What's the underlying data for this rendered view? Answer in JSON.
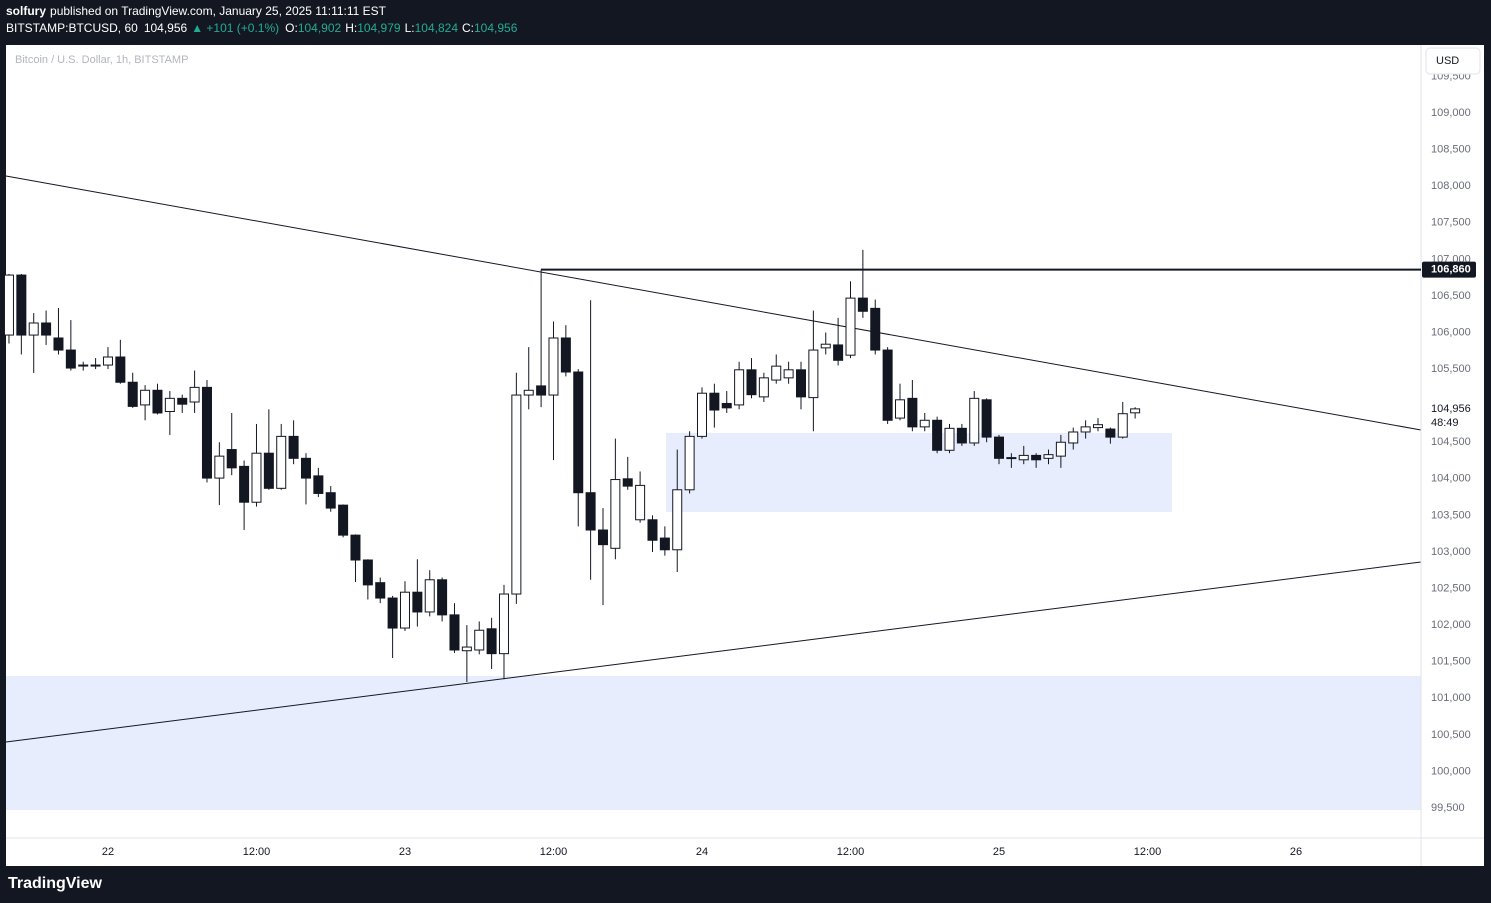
{
  "header": {
    "author": "solfury",
    "published": "published on TradingView.com, January 25, 2025 11:11:11 EST",
    "symbol": "BITSTAMP:BTCUSD, 60",
    "last": "104,956",
    "change": "▲ +101 (+0.1%)",
    "ohlc": [
      {
        "key": "O:",
        "value": "104,902"
      },
      {
        "key": "H:",
        "value": "104,979"
      },
      {
        "key": "L:",
        "value": "104,824"
      },
      {
        "key": "C:",
        "value": "104,956"
      }
    ]
  },
  "chart_data": {
    "type": "candlestick",
    "title": "Bitcoin / U.S. Dollar, 1h, BITSTAMP",
    "currency": "USD",
    "up_color": "#ffffff",
    "down_color": "#131722",
    "x": [
      -8,
      -7,
      -6,
      -5,
      -4,
      -3,
      -2,
      -1,
      0,
      1,
      2,
      3,
      4,
      5,
      6,
      7,
      8,
      9,
      10,
      11,
      12,
      13,
      14,
      15,
      16,
      17,
      18,
      19,
      20,
      21,
      22,
      23,
      24,
      25,
      26,
      27,
      28,
      29,
      30,
      31,
      32,
      33,
      34,
      35,
      36,
      37,
      38,
      39,
      40,
      41,
      42,
      43,
      44,
      45,
      46,
      47,
      48,
      49,
      50,
      51,
      52,
      53,
      54,
      55,
      56,
      57,
      58,
      59,
      60,
      61,
      62,
      63,
      64,
      65,
      66,
      67,
      68,
      69,
      70,
      71,
      72,
      73,
      74,
      75,
      76,
      77,
      78,
      79,
      80,
      81,
      82,
      83
    ],
    "open": [
      105965,
      106785,
      105965,
      106130,
      105925,
      105760,
      105550,
      105555,
      105555,
      105665,
      105320,
      105010,
      105210,
      104920,
      105100,
      105050,
      105250,
      104010,
      104400,
      104170,
      103680,
      104350,
      103870,
      104580,
      104280,
      104040,
      103810,
      103640,
      103230,
      102890,
      102580,
      102370,
      101960,
      102450,
      102180,
      102620,
      102140,
      101650,
      101660,
      101950,
      101610,
      102425,
      105145,
      105270,
      105145,
      105925,
      105460,
      103810,
      103300,
      103050,
      104000,
      103440,
      103440,
      103190,
      103030,
      103850,
      104580,
      105170,
      105030,
      105010,
      105490,
      105120,
      105350,
      105380,
      105490,
      105110,
      105790,
      105830,
      105690,
      106470,
      106330,
      105760,
      104830,
      105100,
      104710,
      104800,
      104390,
      104690,
      104490,
      105080,
      104570,
      104290,
      104260,
      104320,
      104280,
      104310,
      104490,
      104640,
      104700,
      104680,
      104570,
      104902
    ],
    "high": [
      106800,
      106800,
      106266,
      106300,
      106334,
      106170,
      105600,
      105650,
      105800,
      105900,
      105450,
      105280,
      105300,
      105200,
      105150,
      105480,
      105350,
      104500,
      104900,
      104250,
      104750,
      104950,
      104750,
      104800,
      104350,
      104150,
      103900,
      103650,
      103240,
      102900,
      102650,
      102400,
      102600,
      102900,
      102750,
      102650,
      102300,
      102000,
      102050,
      102100,
      102550,
      105450,
      105800,
      106860,
      106150,
      106100,
      105500,
      106440,
      103600,
      104550,
      104300,
      104100,
      103500,
      103350,
      104400,
      104650,
      105250,
      105300,
      105200,
      105600,
      105650,
      105450,
      105700,
      105600,
      105600,
      106300,
      106000,
      106200,
      106700,
      107130,
      106450,
      105800,
      105300,
      105350,
      104900,
      104850,
      104750,
      104750,
      105200,
      105100,
      104600,
      104350,
      104450,
      104350,
      104400,
      104600,
      104700,
      104800,
      104830,
      104700,
      105050,
      104979
    ],
    "low": [
      105850,
      105700,
      105446,
      105830,
      105700,
      105480,
      105480,
      105500,
      105500,
      105300,
      104970,
      104800,
      104880,
      104600,
      104900,
      104900,
      103950,
      103641,
      104050,
      103300,
      103620,
      103850,
      103850,
      104200,
      103650,
      103750,
      103550,
      103200,
      102589,
      102350,
      102300,
      101550,
      101920,
      101980,
      102120,
      102050,
      101620,
      101222,
      101600,
      101400,
      101260,
      102290,
      104950,
      104980,
      104256,
      105400,
      103350,
      102620,
      102274,
      102900,
      103850,
      103400,
      103000,
      102950,
      102726,
      103800,
      104550,
      104700,
      104900,
      104950,
      105100,
      105050,
      105300,
      105300,
      104950,
      104650,
      105700,
      105550,
      105650,
      106200,
      105700,
      104750,
      104800,
      104650,
      104650,
      104350,
      104350,
      104450,
      104450,
      104500,
      104200,
      104150,
      104200,
      104150,
      104200,
      104150,
      104400,
      104550,
      104650,
      104480,
      104550,
      104824
    ],
    "close": [
      106785,
      105965,
      106130,
      105965,
      105760,
      105514,
      105555,
      105550,
      105665,
      105320,
      104990,
      105210,
      104900,
      105100,
      105020,
      105250,
      104010,
      104310,
      104150,
      103680,
      104350,
      103870,
      104580,
      104280,
      104010,
      103800,
      103600,
      103230,
      102890,
      102550,
      102370,
      101960,
      102450,
      102180,
      102620,
      102140,
      101660,
      101700,
      101930,
      101610,
      102425,
      105145,
      105210,
      105145,
      105925,
      105460,
      103810,
      103300,
      103100,
      103990,
      103900,
      103910,
      103160,
      103030,
      103850,
      104580,
      105170,
      104940,
      104970,
      105490,
      105150,
      105380,
      105540,
      105490,
      105120,
      105760,
      105840,
      105620,
      106470,
      106290,
      105760,
      104800,
      105080,
      104710,
      104800,
      104390,
      104690,
      104490,
      105100,
      104570,
      104280,
      104280,
      104320,
      104260,
      104330,
      104500,
      104640,
      104710,
      104740,
      104570,
      104890,
      104956
    ],
    "xlim": [
      -8.24,
      106.1
    ],
    "xticks": [
      {
        "value": 0,
        "label": "22"
      },
      {
        "value": 12,
        "label": "12:00"
      },
      {
        "value": 24,
        "label": "23"
      },
      {
        "value": 36,
        "label": "12:00"
      },
      {
        "value": 48,
        "label": "24"
      },
      {
        "value": 60,
        "label": "12:00"
      },
      {
        "value": 72,
        "label": "25"
      },
      {
        "value": 84,
        "label": "12:00"
      },
      {
        "value": 96,
        "label": "26"
      }
    ],
    "ylim": [
      99090,
      109930
    ],
    "yticks": [
      {
        "value": 99500,
        "label": "99,500"
      },
      {
        "value": 100000,
        "label": "100,000"
      },
      {
        "value": 100500,
        "label": "100,500"
      },
      {
        "value": 101000,
        "label": "101,000"
      },
      {
        "value": 101500,
        "label": "101,500"
      },
      {
        "value": 102000,
        "label": "102,000"
      },
      {
        "value": 102500,
        "label": "102,500"
      },
      {
        "value": 103000,
        "label": "103,000"
      },
      {
        "value": 103500,
        "label": "103,500"
      },
      {
        "value": 104000,
        "label": "104,000"
      },
      {
        "value": 104500,
        "label": "104,500"
      },
      {
        "value": 105000,
        "label": "105,000"
      },
      {
        "value": 105500,
        "label": "105,500"
      },
      {
        "value": 106000,
        "label": "106,000"
      },
      {
        "value": 106500,
        "label": "106,500"
      },
      {
        "value": 107000,
        "label": "107,000"
      },
      {
        "value": 107500,
        "label": "107,500"
      },
      {
        "value": 108000,
        "label": "108,000"
      },
      {
        "value": 108500,
        "label": "108,500"
      },
      {
        "value": 109000,
        "label": "109,000"
      },
      {
        "value": 109500,
        "label": "109,500"
      }
    ],
    "price_line": {
      "value": 106860,
      "label": "106,860"
    },
    "last_price": {
      "value": 104956,
      "label": "104,956"
    },
    "countdown": "48:49"
  },
  "footer": {
    "brand": "TradingView"
  }
}
